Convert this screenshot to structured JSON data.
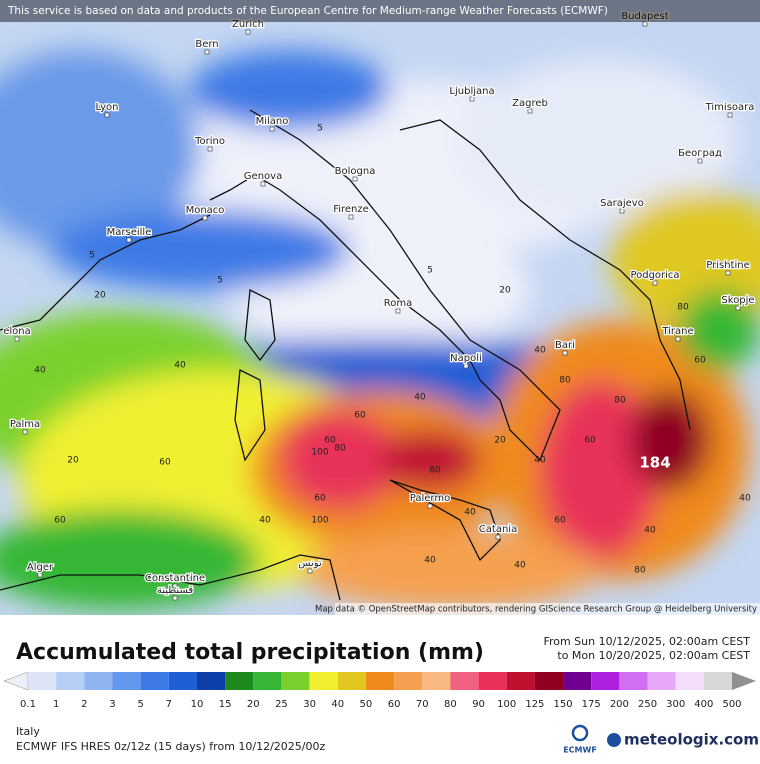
{
  "header": {
    "notice": "This service is based on data and products of the European Centre for Medium-range Weather Forecasts (ECMWF)"
  },
  "map": {
    "cities": [
      "Bern",
      "Zurich",
      "Budapest",
      "Lyon",
      "Milano",
      "Ljubljana",
      "Zagreb",
      "Timisoara",
      "Torino",
      "Београд",
      "Genova",
      "Bologna",
      "Monaco",
      "Firenze",
      "Sarajevo",
      "Marseille",
      "Podgorica",
      "Prishtine",
      "Roma",
      "Skopje",
      "elona",
      "Tirane",
      "Bari",
      "Napoli",
      "Palma",
      "Palermo",
      "Catania",
      "Alger",
      "Constantine",
      "قسنطينة",
      "تونس"
    ],
    "contour_labels": [
      "5",
      "5",
      "5",
      "5",
      "20",
      "40",
      "40",
      "60",
      "40",
      "60",
      "100",
      "80",
      "80",
      "60",
      "40",
      "100",
      "60",
      "40",
      "20",
      "40",
      "60",
      "80",
      "80",
      "60",
      "40",
      "40",
      "80",
      "60",
      "40",
      "20",
      "40",
      "20",
      "60",
      "80",
      "40"
    ],
    "max_label": "184",
    "attribution": "Map data © OpenStreetMap contributors, rendering GIScience Research Group @ Heidelberg University"
  },
  "legend": {
    "title": "Accumulated total precipitation (mm)",
    "period_from": "From Sun 10/12/2025, 02:00am CEST",
    "period_to": "to Mon 10/20/2025, 02:00am CEST",
    "levels": [
      "0.1",
      "1",
      "2",
      "3",
      "5",
      "7",
      "10",
      "15",
      "20",
      "25",
      "30",
      "40",
      "50",
      "60",
      "70",
      "80",
      "90",
      "100",
      "125",
      "150",
      "175",
      "200",
      "250",
      "300",
      "400",
      "500"
    ],
    "colors": [
      "#eeeef8",
      "#dde4f7",
      "#b6cdf5",
      "#8fb4f2",
      "#6297ee",
      "#3d7ae6",
      "#1e5fd6",
      "#0f3fa8",
      "#1e8a1e",
      "#35b735",
      "#7ad12e",
      "#f0f030",
      "#e0c820",
      "#f08a1a",
      "#f5a050",
      "#f8b880",
      "#f06080",
      "#e8305a",
      "#c01030",
      "#900020",
      "#700090",
      "#b020e0",
      "#d070f0",
      "#e8a8f8",
      "#f4ddfa",
      "#d8d8d8",
      "#909090"
    ]
  },
  "footer": {
    "region": "Italy",
    "model": "ECMWF IFS HRES 0z/12z (15 days) from  10/12/2025/00z",
    "ecmwf": "ECMWF",
    "brand": "meteologix.com"
  }
}
